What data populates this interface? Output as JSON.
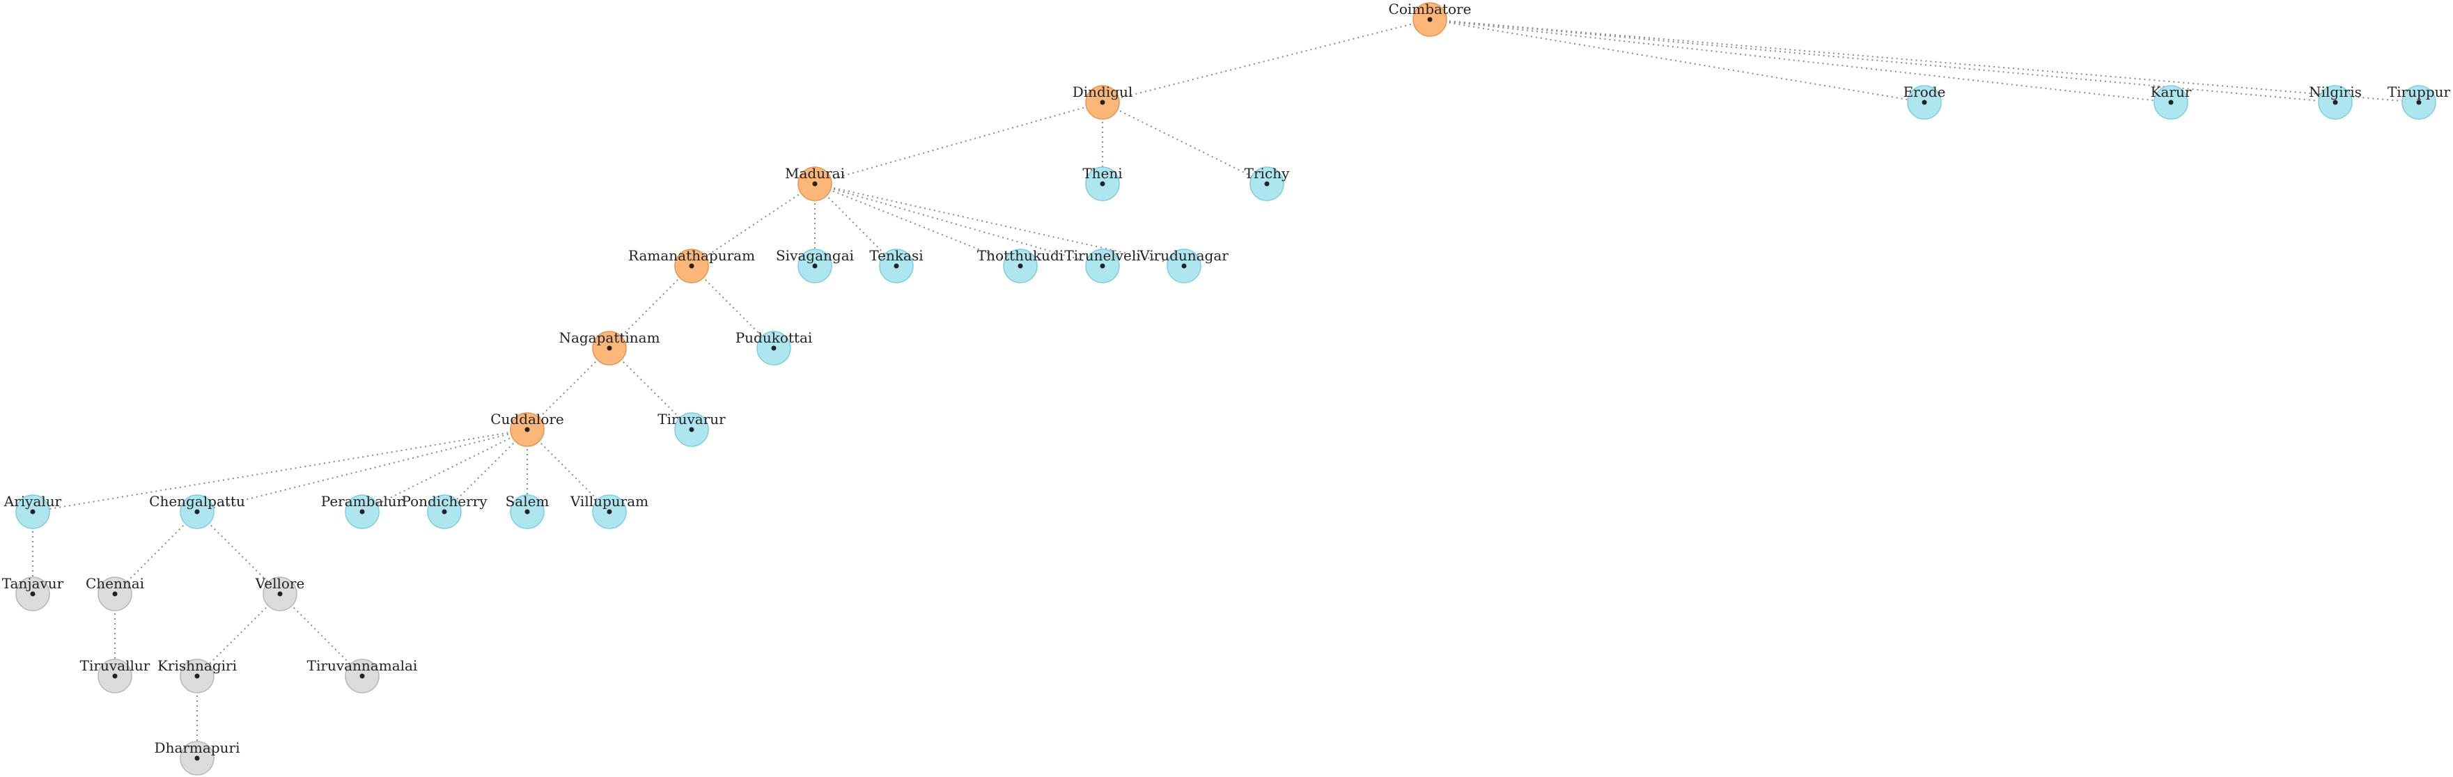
{
  "diagram": {
    "type": "tree",
    "colors": {
      "orange": "#fbb77a",
      "cyan": "#ade6ee",
      "gray": "#dcdcdc"
    },
    "nodes": [
      {
        "id": "coimbatore",
        "label": "Coimbatore",
        "color": "orange"
      },
      {
        "id": "dindigul",
        "label": "Dindigul",
        "color": "orange"
      },
      {
        "id": "erode",
        "label": "Erode",
        "color": "cyan"
      },
      {
        "id": "karur",
        "label": "Karur",
        "color": "cyan"
      },
      {
        "id": "nilgiris",
        "label": "Nilgiris",
        "color": "cyan"
      },
      {
        "id": "tiruppur",
        "label": "Tiruppur",
        "color": "cyan"
      },
      {
        "id": "madurai",
        "label": "Madurai",
        "color": "orange"
      },
      {
        "id": "theni",
        "label": "Theni",
        "color": "cyan"
      },
      {
        "id": "trichy",
        "label": "Trichy",
        "color": "cyan"
      },
      {
        "id": "ramanathapuram",
        "label": "Ramanathapuram",
        "color": "orange"
      },
      {
        "id": "sivagangai",
        "label": "Sivagangai",
        "color": "cyan"
      },
      {
        "id": "tenkasi",
        "label": "Tenkasi",
        "color": "cyan"
      },
      {
        "id": "thotthukudi",
        "label": "Thotthukudi",
        "color": "cyan"
      },
      {
        "id": "tirunelveli",
        "label": "Tirunelveli",
        "color": "cyan"
      },
      {
        "id": "virudunagar",
        "label": "Virudunagar",
        "color": "cyan"
      },
      {
        "id": "nagapattinam",
        "label": "Nagapattinam",
        "color": "orange"
      },
      {
        "id": "pudukottai",
        "label": "Pudukottai",
        "color": "cyan"
      },
      {
        "id": "cuddalore",
        "label": "Cuddalore",
        "color": "orange"
      },
      {
        "id": "tiruvarur",
        "label": "Tiruvarur",
        "color": "cyan"
      },
      {
        "id": "ariyalur",
        "label": "Ariyalur",
        "color": "cyan"
      },
      {
        "id": "chengalpattu",
        "label": "Chengalpattu",
        "color": "cyan"
      },
      {
        "id": "perambalur",
        "label": "Perambalur",
        "color": "cyan"
      },
      {
        "id": "pondicherry",
        "label": "Pondicherry",
        "color": "cyan"
      },
      {
        "id": "salem",
        "label": "Salem",
        "color": "cyan"
      },
      {
        "id": "villupuram",
        "label": "Villupuram",
        "color": "cyan"
      },
      {
        "id": "tanjavur",
        "label": "Tanjavur",
        "color": "gray"
      },
      {
        "id": "chennai",
        "label": "Chennai",
        "color": "gray"
      },
      {
        "id": "vellore",
        "label": "Vellore",
        "color": "gray"
      },
      {
        "id": "tiruvallur",
        "label": "Tiruvallur",
        "color": "gray"
      },
      {
        "id": "krishnagiri",
        "label": "Krishnagiri",
        "color": "gray"
      },
      {
        "id": "tiruvannamalai",
        "label": "Tiruvannamalai",
        "color": "gray"
      },
      {
        "id": "dharmapuri",
        "label": "Dharmapuri",
        "color": "gray"
      }
    ],
    "edges": [
      [
        "coimbatore",
        "dindigul"
      ],
      [
        "coimbatore",
        "erode"
      ],
      [
        "coimbatore",
        "karur"
      ],
      [
        "coimbatore",
        "nilgiris"
      ],
      [
        "coimbatore",
        "tiruppur"
      ],
      [
        "dindigul",
        "madurai"
      ],
      [
        "dindigul",
        "theni"
      ],
      [
        "dindigul",
        "trichy"
      ],
      [
        "madurai",
        "ramanathapuram"
      ],
      [
        "madurai",
        "sivagangai"
      ],
      [
        "madurai",
        "tenkasi"
      ],
      [
        "madurai",
        "thotthukudi"
      ],
      [
        "madurai",
        "tirunelveli"
      ],
      [
        "madurai",
        "virudunagar"
      ],
      [
        "ramanathapuram",
        "nagapattinam"
      ],
      [
        "ramanathapuram",
        "pudukottai"
      ],
      [
        "nagapattinam",
        "cuddalore"
      ],
      [
        "nagapattinam",
        "tiruvarur"
      ],
      [
        "cuddalore",
        "ariyalur"
      ],
      [
        "cuddalore",
        "chengalpattu"
      ],
      [
        "cuddalore",
        "perambalur"
      ],
      [
        "cuddalore",
        "pondicherry"
      ],
      [
        "cuddalore",
        "salem"
      ],
      [
        "cuddalore",
        "villupuram"
      ],
      [
        "ariyalur",
        "tanjavur"
      ],
      [
        "chengalpattu",
        "chennai"
      ],
      [
        "chengalpattu",
        "vellore"
      ],
      [
        "chennai",
        "tiruvallur"
      ],
      [
        "vellore",
        "krishnagiri"
      ],
      [
        "vellore",
        "tiruvannamalai"
      ],
      [
        "krishnagiri",
        "dharmapuri"
      ]
    ]
  }
}
